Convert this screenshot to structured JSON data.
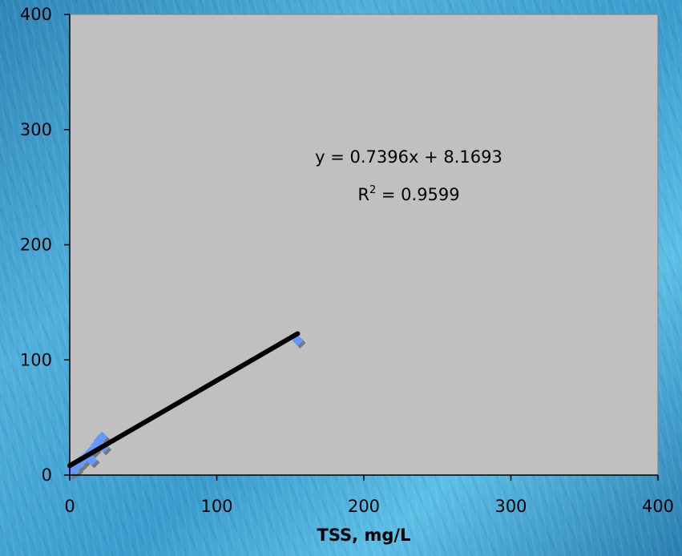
{
  "chart_data": {
    "type": "scatter",
    "xlabel": "TSS, mg/L",
    "ylabel": "",
    "xlim": [
      0,
      400
    ],
    "ylim": [
      0,
      400
    ],
    "xticks": [
      0,
      100,
      200,
      300,
      400
    ],
    "yticks": [
      0,
      100,
      200,
      300,
      400
    ],
    "grid": false,
    "plot_background": "#c0c0c0",
    "marker_color": "#6699ff",
    "trendline_color": "#000000",
    "series": [
      {
        "points": [
          {
            "x": 1,
            "y": 3
          },
          {
            "x": 2,
            "y": 6
          },
          {
            "x": 3,
            "y": 8
          },
          {
            "x": 4,
            "y": 5
          },
          {
            "x": 5,
            "y": 10
          },
          {
            "x": 6,
            "y": 9
          },
          {
            "x": 7,
            "y": 12
          },
          {
            "x": 8,
            "y": 11
          },
          {
            "x": 10,
            "y": 14
          },
          {
            "x": 12,
            "y": 17
          },
          {
            "x": 14,
            "y": 20
          },
          {
            "x": 15,
            "y": 13
          },
          {
            "x": 16,
            "y": 22
          },
          {
            "x": 18,
            "y": 26
          },
          {
            "x": 20,
            "y": 30
          },
          {
            "x": 22,
            "y": 33
          },
          {
            "x": 23,
            "y": 24
          },
          {
            "x": 155,
            "y": 117
          }
        ]
      }
    ],
    "trendline": {
      "slope": 0.7396,
      "intercept": 8.1693,
      "x_range": [
        0,
        155
      ],
      "equation_text": "y = 0.7396x + 8.1693",
      "r2_label": "R",
      "r2_sup": "2",
      "r2_value_text": " = 0.9599"
    }
  }
}
